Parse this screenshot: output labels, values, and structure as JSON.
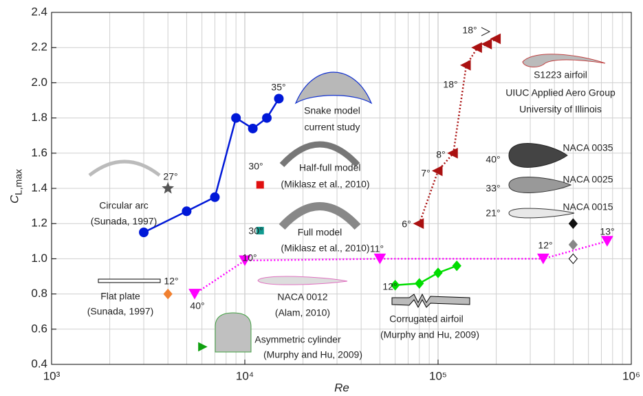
{
  "chart_data": {
    "type": "line",
    "xlabel": "Re",
    "ylabel": "C",
    "ylabel_sub": "L,max",
    "xscale": "log",
    "xlim": [
      1000,
      1000000
    ],
    "ylim": [
      0.4,
      2.4
    ],
    "xticks": [
      {
        "value": 1000,
        "label": "10³"
      },
      {
        "value": 10000,
        "label": "10⁴"
      },
      {
        "value": 100000,
        "label": "10⁵"
      },
      {
        "value": 1000000,
        "label": "10⁶"
      }
    ],
    "xminorticks": [
      2000,
      3000,
      4000,
      5000,
      6000,
      7000,
      8000,
      9000,
      20000,
      30000,
      40000,
      50000,
      60000,
      70000,
      80000,
      90000,
      200000,
      300000,
      400000,
      500000,
      600000,
      700000,
      800000,
      900000
    ],
    "yticks": [
      0.4,
      0.6,
      0.8,
      {
        "value": 1,
        "label": "1.0"
      },
      1.2,
      1.4,
      1.6,
      1.8,
      {
        "value": 2,
        "label": "2.0"
      },
      2.2,
      2.4
    ],
    "grid": true,
    "series": [
      {
        "color": "#0018d8",
        "marker": "circle",
        "linestyle": "solid",
        "x": [
          3000,
          5000,
          7000,
          9000,
          11000,
          13000,
          15000
        ],
        "values": [
          1.15,
          1.27,
          1.35,
          1.8,
          1.74,
          1.8,
          1.91
        ]
      },
      {
        "color": "#aa1111",
        "marker": "triangle-left",
        "linestyle": "dotted",
        "x": [
          80000,
          100000,
          120000,
          140000,
          160000,
          180000,
          200000
        ],
        "values": [
          1.2,
          1.5,
          1.6,
          2.1,
          2.2,
          2.22,
          2.25
        ]
      },
      {
        "color": "#ff00ff",
        "marker": "triangle-down",
        "linestyle": "dotted",
        "x": [
          5500,
          10000,
          50000,
          350000,
          750000
        ],
        "values": [
          0.8,
          0.99,
          1.0,
          1.0,
          1.1
        ]
      },
      {
        "color": "#00dd00",
        "marker": "diamond",
        "linestyle": "solid",
        "x": [
          60000,
          80000,
          100000,
          125000
        ],
        "values": [
          0.85,
          0.86,
          0.92,
          0.96
        ]
      },
      {
        "color": "#555555",
        "marker": "star",
        "linestyle": "none",
        "x": [
          4000
        ],
        "values": [
          1.4
        ]
      },
      {
        "color": "#f08030",
        "marker": "diamond",
        "linestyle": "none",
        "x": [
          4000
        ],
        "values": [
          0.8
        ]
      },
      {
        "color": "#e01010",
        "marker": "square",
        "linestyle": "none",
        "x": [
          12000
        ],
        "values": [
          1.42
        ]
      },
      {
        "color": "#109a90",
        "marker": "square",
        "linestyle": "none",
        "x": [
          12000
        ],
        "values": [
          1.16
        ]
      },
      {
        "color": "#10a010",
        "marker": "triangle-right",
        "linestyle": "none",
        "x": [
          6000
        ],
        "values": [
          0.5
        ]
      },
      {
        "color": "#111111",
        "marker": "diamond",
        "linestyle": "none",
        "x": [
          500000
        ],
        "values": [
          1.2
        ]
      },
      {
        "color": "#888888",
        "marker": "diamond",
        "linestyle": "none",
        "x": [
          500000
        ],
        "values": [
          1.08
        ]
      },
      {
        "color": "#ffffff",
        "marker": "diamond",
        "linestyle": "none",
        "x": [
          500000
        ],
        "values": [
          1.0
        ]
      }
    ],
    "annotations": [
      "35°",
      "Snake model",
      "current study",
      "27°",
      "Circular arc",
      "(Sunada, 1997)",
      "30°",
      "Half-full model",
      "(Miklasz et al., 2010)",
      "30°",
      "Full model",
      "(Miklasz et al., 2010)",
      "12°",
      "Flat plate",
      "(Sunada, 1997)",
      "40°",
      "10°",
      "NACA 0012",
      "(Alam, 2010)",
      "Asymmetric cylinder",
      "(Murphy and Hu, 2009)",
      "11°",
      "12°",
      "Corrugated airfoil",
      "(Murphy and Hu, 2009)",
      "12°",
      "13°",
      "6°",
      "7°",
      "8°",
      "18°",
      "18°",
      "S1223 airfoil",
      "UIUC Applied Aero Group",
      "University of Illinois",
      "NACA 0035",
      "NACA 0025",
      "NACA 0015",
      "40°",
      "33°",
      "21°"
    ]
  }
}
